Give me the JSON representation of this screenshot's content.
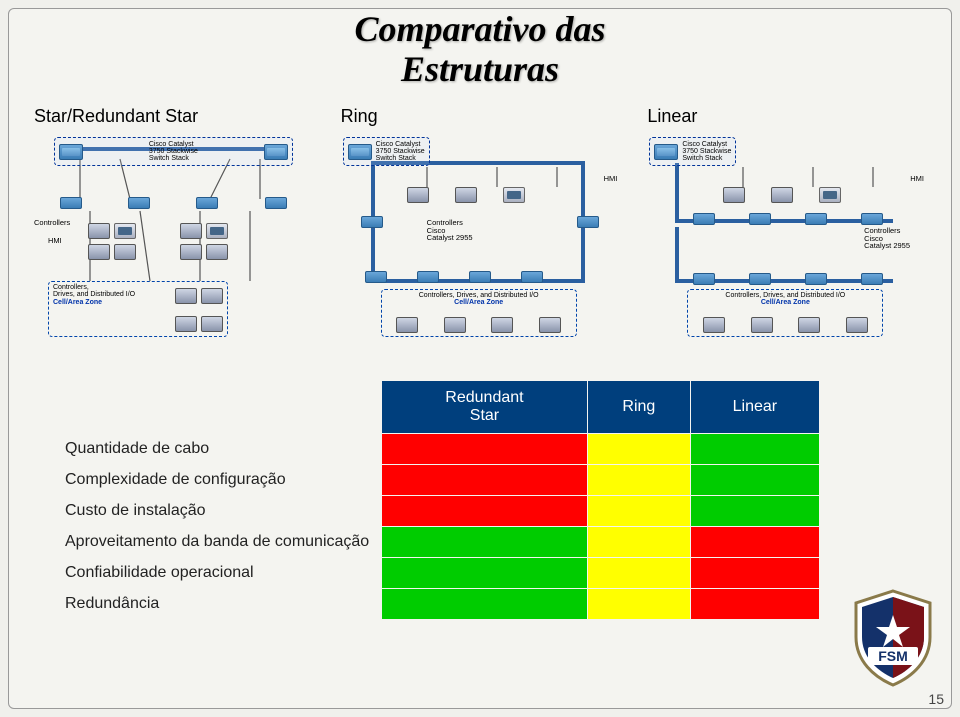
{
  "title_line1": "Comparativo das",
  "title_line2": "Estruturas",
  "diagrams": {
    "star": {
      "title": "Star/Redundant Star"
    },
    "ring": {
      "title": "Ring"
    },
    "linear": {
      "title": "Linear"
    }
  },
  "switch_label_l1": "Cisco Catalyst",
  "switch_label_l2": "3750 Stackwise",
  "switch_label_l3": "Switch Stack",
  "labels": {
    "controllers": "Controllers",
    "hmi": "HMI",
    "catalyst2955_l1": "Cisco",
    "catalyst2955_l2": "Catalyst 2955",
    "bottom_zone_l1": "Controllers,",
    "bottom_zone_l2": "Drives, and Distributed I/O",
    "bottom_zone_compact": "Controllers, Drives, and Distributed I/O",
    "cell_area": "Cell/Area Zone"
  },
  "table": {
    "header_bg": "#003f7d",
    "cols": [
      {
        "label_l1": "Redundant",
        "label_l2": "Star"
      },
      {
        "label_l1": "Ring",
        "label_l2": ""
      },
      {
        "label_l1": "Linear",
        "label_l2": ""
      }
    ],
    "rows": [
      {
        "label": "Quantidade de cabo",
        "cells": [
          "#ff0000",
          "#ffff00",
          "#00cc00"
        ]
      },
      {
        "label": "Complexidade de configuração",
        "cells": [
          "#ff0000",
          "#ffff00",
          "#00cc00"
        ]
      },
      {
        "label": "Custo de instalação",
        "cells": [
          "#ff0000",
          "#ffff00",
          "#00cc00"
        ]
      },
      {
        "label": "Aproveitamento da banda de comunicação",
        "cells": [
          "#00cc00",
          "#ffff00",
          "#ff0000"
        ]
      },
      {
        "label": "Confiabilidade operacional",
        "cells": [
          "#00cc00",
          "#ffff00",
          "#ff0000"
        ]
      },
      {
        "label": "Redundância",
        "cells": [
          "#00cc00",
          "#ffff00",
          "#ff0000"
        ]
      }
    ]
  },
  "logo_text": "FSM",
  "slide_number": "15",
  "colors": {
    "header_bg": "#003f7d",
    "red": "#ff0000",
    "yellow": "#ffff00",
    "green": "#00cc00",
    "cell_area_text": "#0033aa"
  }
}
